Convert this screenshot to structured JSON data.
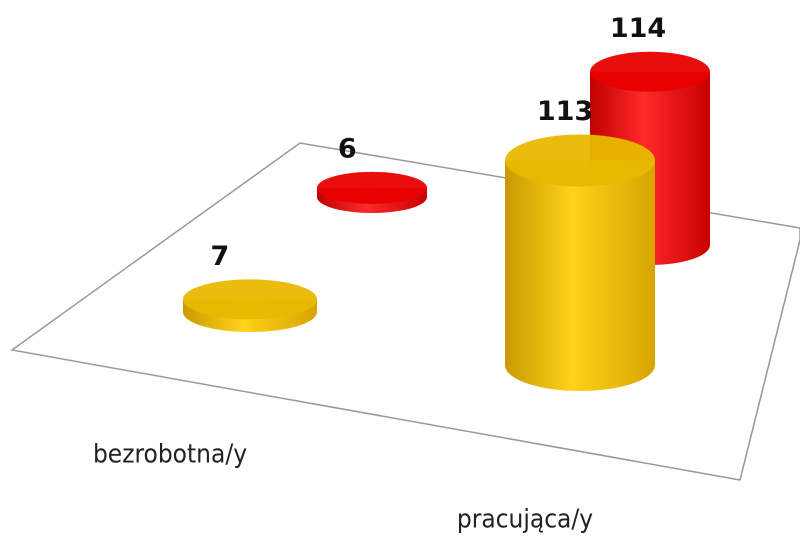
{
  "chart_data": {
    "type": "bar3d",
    "categories": [
      "bezrobotna/y",
      "pracująca/y"
    ],
    "series": [
      {
        "color": "#e8b800",
        "values": [
          7,
          113
        ]
      },
      {
        "color": "#e80000",
        "values": [
          6,
          114
        ]
      }
    ]
  }
}
